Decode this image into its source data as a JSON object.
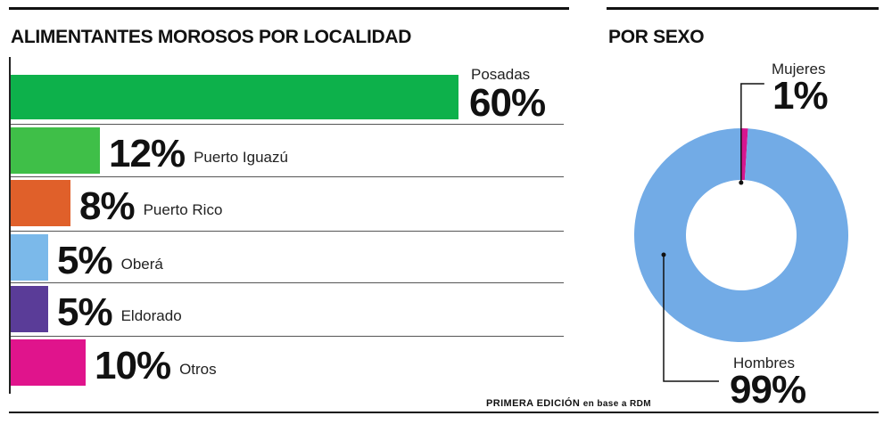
{
  "source": {
    "prefix": "PRIMERA EDICIÓN",
    "suffix": "en base a RDM"
  },
  "chart_data": [
    {
      "type": "bar",
      "orientation": "horizontal",
      "title": "ALIMENTANTES MOROSOS POR LOCALIDAD",
      "categories": [
        "Posadas",
        "Puerto Iguazú",
        "Puerto Rico",
        "Oberá",
        "Eldorado",
        "Otros"
      ],
      "values": [
        60,
        12,
        8,
        5,
        5,
        10
      ],
      "value_labels": [
        "60%",
        "12%",
        "8%",
        "5%",
        "5%",
        "10%"
      ],
      "unit": "%",
      "colors": [
        "#0db14b",
        "#3fbf48",
        "#e0602a",
        "#7bb9ea",
        "#5a3c98",
        "#e0148c"
      ],
      "xlim": [
        0,
        60
      ],
      "grid": false,
      "legend": "none"
    },
    {
      "type": "pie",
      "style": "donut",
      "title": "POR SEXO",
      "categories": [
        "Mujeres",
        "Hombres"
      ],
      "values": [
        1,
        99
      ],
      "value_labels": [
        "1%",
        "99%"
      ],
      "unit": "%",
      "colors": [
        "#d6168f",
        "#72abe6"
      ]
    }
  ]
}
